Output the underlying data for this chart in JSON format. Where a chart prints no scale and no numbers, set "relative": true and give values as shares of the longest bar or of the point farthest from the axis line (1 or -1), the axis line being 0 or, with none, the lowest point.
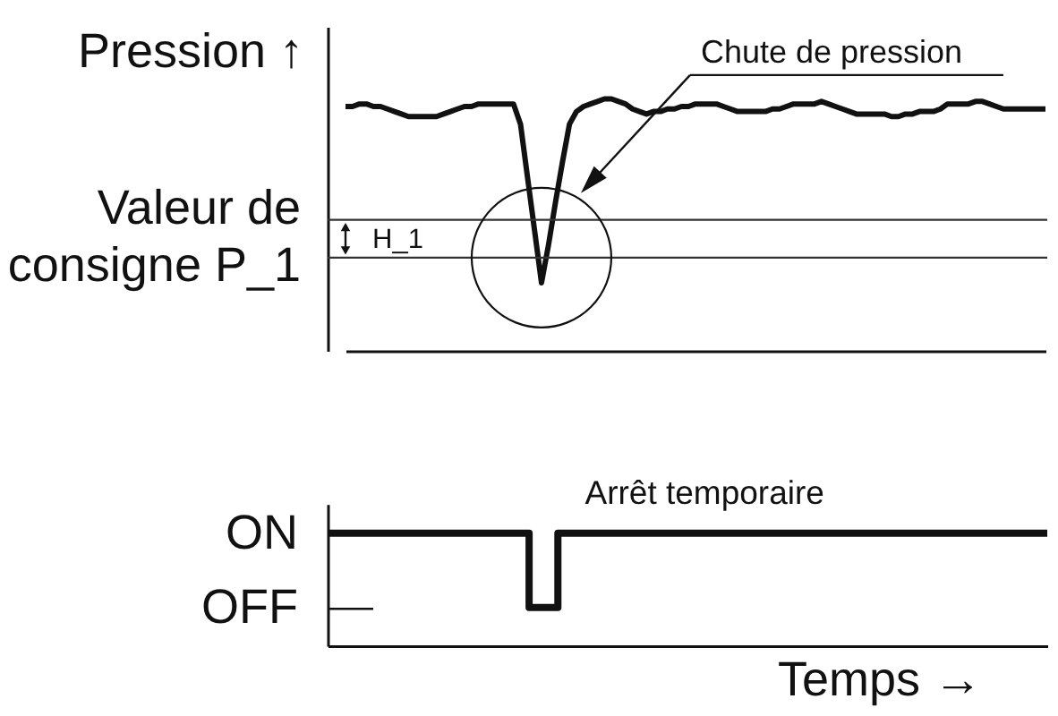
{
  "chart_data": [
    {
      "type": "line",
      "relative": true,
      "ylabel": "Pression ↑",
      "categories": [
        null,
        null,
        null,
        null,
        null,
        null,
        null,
        null,
        null,
        null,
        null,
        null,
        null,
        null,
        null,
        null,
        null,
        null,
        null,
        null,
        null,
        null,
        null,
        null,
        null,
        null,
        null,
        null,
        null,
        null,
        null,
        null,
        null,
        null,
        null,
        null,
        null,
        null,
        null,
        null,
        null,
        null,
        null,
        null,
        null,
        null,
        null,
        null,
        null,
        null,
        null,
        null,
        null,
        null,
        null,
        null,
        null,
        null,
        null,
        null,
        null,
        null,
        null,
        null,
        null,
        null,
        null,
        null,
        null,
        null,
        null,
        null,
        null,
        null,
        null,
        null,
        null,
        null,
        null,
        null,
        null,
        null,
        null,
        null,
        null,
        null,
        null,
        null,
        null,
        null,
        null,
        null,
        null,
        null,
        null,
        null,
        null,
        null,
        null,
        null,
        null
      ],
      "color": "#111111",
      "values": [
        0.97,
        0.97,
        0.98,
        0.98,
        0.97,
        0.97,
        0.96,
        0.95,
        0.94,
        0.93,
        0.93,
        0.93,
        0.93,
        0.93,
        0.94,
        0.95,
        0.96,
        0.97,
        0.97,
        0.98,
        0.98,
        0.98,
        0.98,
        0.98,
        0.98,
        0.9,
        0.69,
        0.48,
        0.27,
        0.42,
        0.59,
        0.75,
        0.9,
        0.95,
        0.97,
        0.98,
        0.99,
        1,
        1,
        0.99,
        0.98,
        0.96,
        0.95,
        0.94,
        0.95,
        0.95,
        0.96,
        0.96,
        0.97,
        0.97,
        0.98,
        0.98,
        0.98,
        0.98,
        0.97,
        0.96,
        0.95,
        0.95,
        0.95,
        0.95,
        0.95,
        0.96,
        0.96,
        0.97,
        0.98,
        0.98,
        0.98,
        0.98,
        0.99,
        0.98,
        0.97,
        0.96,
        0.95,
        0.94,
        0.94,
        0.94,
        0.94,
        0.94,
        0.93,
        0.93,
        0.94,
        0.94,
        0.95,
        0.95,
        0.95,
        0.96,
        0.98,
        0.98,
        0.98,
        0.98,
        0.99,
        0.99,
        0.98,
        0.97,
        0.96,
        0.96,
        0.96,
        0.96,
        0.96,
        0.96,
        0.96
      ],
      "ref_lines": [
        {
          "axis": "y",
          "value": 0.52,
          "label": "Valeur de\nconsigne P_1",
          "color": "#333333"
        },
        {
          "axis": "y",
          "value": 0.37,
          "color": "#333333"
        }
      ],
      "annotations": [
        "Chute de pression",
        "H_1"
      ]
    },
    {
      "type": "step",
      "relative": true,
      "xlabel": "Temps →",
      "categories": [
        null,
        null,
        null,
        null,
        null,
        null,
        null,
        null,
        null,
        null,
        null,
        null,
        null,
        null,
        null,
        null,
        null,
        null,
        null,
        null,
        null,
        null,
        null,
        null,
        null,
        null
      ],
      "color": "#111111",
      "values": [
        1,
        1,
        1,
        1,
        1,
        1,
        1,
        0.34,
        1,
        1,
        1,
        1,
        1,
        1,
        1,
        1,
        1,
        1,
        1,
        1,
        1,
        1,
        1,
        1,
        1,
        1
      ],
      "annotations": [
        "Arrêt temporaire",
        "ON",
        "OFF"
      ]
    }
  ]
}
